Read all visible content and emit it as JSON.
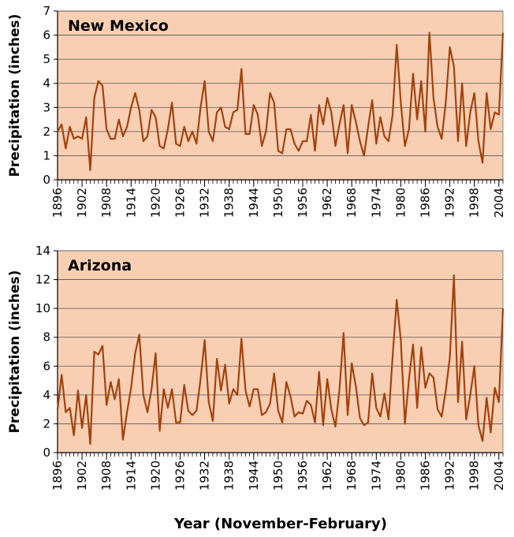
{
  "chart_data": [
    {
      "type": "line",
      "title": "New Mexico",
      "ylabel": "Precipitation (inches)",
      "x": [
        1896,
        1897,
        1898,
        1899,
        1900,
        1901,
        1902,
        1903,
        1904,
        1905,
        1906,
        1907,
        1908,
        1909,
        1910,
        1911,
        1912,
        1913,
        1914,
        1915,
        1916,
        1917,
        1918,
        1919,
        1920,
        1921,
        1922,
        1923,
        1924,
        1925,
        1926,
        1927,
        1928,
        1929,
        1930,
        1931,
        1932,
        1933,
        1934,
        1935,
        1936,
        1937,
        1938,
        1939,
        1940,
        1941,
        1942,
        1943,
        1944,
        1945,
        1946,
        1947,
        1948,
        1949,
        1950,
        1951,
        1952,
        1953,
        1954,
        1955,
        1956,
        1957,
        1958,
        1959,
        1960,
        1961,
        1962,
        1963,
        1964,
        1965,
        1966,
        1967,
        1968,
        1969,
        1970,
        1971,
        1972,
        1973,
        1974,
        1975,
        1976,
        1977,
        1978,
        1979,
        1980,
        1981,
        1982,
        1983,
        1984,
        1985,
        1986,
        1987,
        1988,
        1989,
        1990,
        1991,
        1992,
        1993,
        1994,
        1995,
        1996,
        1997,
        1998,
        1999,
        2000,
        2001,
        2002,
        2003,
        2004,
        2005
      ],
      "series": [
        {
          "name": "New Mexico",
          "color": "#a2420c",
          "values": [
            2.0,
            2.3,
            1.3,
            2.2,
            1.7,
            1.8,
            1.7,
            2.6,
            0.4,
            3.4,
            4.1,
            3.9,
            2.1,
            1.7,
            1.7,
            2.5,
            1.8,
            2.2,
            3.0,
            3.6,
            2.9,
            1.6,
            1.8,
            2.9,
            2.6,
            1.4,
            1.3,
            2.1,
            3.2,
            1.5,
            1.4,
            2.2,
            1.6,
            2.0,
            1.5,
            3.0,
            4.1,
            2.0,
            1.6,
            2.8,
            3.0,
            2.2,
            2.1,
            2.8,
            2.9,
            4.6,
            1.9,
            1.9,
            3.1,
            2.7,
            1.4,
            2.0,
            3.6,
            3.2,
            1.2,
            1.1,
            2.1,
            2.1,
            1.5,
            1.2,
            1.6,
            1.6,
            2.7,
            1.2,
            3.1,
            2.3,
            3.4,
            2.8,
            1.4,
            2.3,
            3.1,
            1.1,
            3.1,
            2.4,
            1.6,
            1.0,
            2.2,
            3.3,
            1.5,
            2.6,
            1.8,
            1.6,
            2.7,
            5.6,
            3.2,
            1.4,
            2.1,
            4.4,
            2.5,
            4.1,
            2.0,
            6.1,
            3.4,
            2.2,
            1.7,
            3.2,
            5.5,
            4.7,
            1.6,
            4.0,
            1.4,
            2.8,
            3.6,
            1.6,
            0.7,
            3.6,
            2.1,
            2.8,
            2.7,
            6.1
          ]
        }
      ],
      "xlim": [
        1896,
        2005
      ],
      "xticks": [
        1896,
        1902,
        1908,
        1914,
        1920,
        1926,
        1932,
        1938,
        1944,
        1950,
        1956,
        1962,
        1968,
        1974,
        1980,
        1986,
        1992,
        1998,
        2004
      ],
      "ylim": [
        0,
        7
      ],
      "yticks": [
        0,
        1,
        2,
        3,
        4,
        5,
        6,
        7
      ],
      "grid": true,
      "background": "#f9cfb4"
    },
    {
      "type": "line",
      "title": "Arizona",
      "ylabel": "Precipitation (inches)",
      "xlabel": "Year (November-February)",
      "x": [
        1896,
        1897,
        1898,
        1899,
        1900,
        1901,
        1902,
        1903,
        1904,
        1905,
        1906,
        1907,
        1908,
        1909,
        1910,
        1911,
        1912,
        1913,
        1914,
        1915,
        1916,
        1917,
        1918,
        1919,
        1920,
        1921,
        1922,
        1923,
        1924,
        1925,
        1926,
        1927,
        1928,
        1929,
        1930,
        1931,
        1932,
        1933,
        1934,
        1935,
        1936,
        1937,
        1938,
        1939,
        1940,
        1941,
        1942,
        1943,
        1944,
        1945,
        1946,
        1947,
        1948,
        1949,
        1950,
        1951,
        1952,
        1953,
        1954,
        1955,
        1956,
        1957,
        1958,
        1959,
        1960,
        1961,
        1962,
        1963,
        1964,
        1965,
        1966,
        1967,
        1968,
        1969,
        1970,
        1971,
        1972,
        1973,
        1974,
        1975,
        1976,
        1977,
        1978,
        1979,
        1980,
        1981,
        1982,
        1983,
        1984,
        1985,
        1986,
        1987,
        1988,
        1989,
        1990,
        1991,
        1992,
        1993,
        1994,
        1995,
        1996,
        1997,
        1998,
        1999,
        2000,
        2001,
        2002,
        2003,
        2004,
        2005
      ],
      "series": [
        {
          "name": "Arizona",
          "color": "#a2420c",
          "values": [
            3.0,
            5.4,
            2.8,
            3.1,
            1.2,
            4.3,
            1.7,
            4.0,
            0.6,
            7.0,
            6.8,
            7.4,
            3.3,
            4.9,
            3.7,
            5.1,
            0.9,
            2.8,
            4.5,
            6.9,
            8.2,
            4.0,
            2.8,
            4.4,
            6.9,
            1.5,
            4.4,
            3.1,
            4.4,
            2.1,
            2.1,
            4.7,
            2.9,
            2.6,
            2.9,
            5.1,
            7.8,
            3.5,
            2.2,
            6.5,
            4.3,
            6.1,
            3.4,
            4.4,
            4.0,
            7.9,
            4.3,
            3.2,
            4.4,
            4.4,
            2.6,
            2.8,
            3.4,
            5.5,
            2.9,
            2.1,
            4.9,
            3.9,
            2.5,
            2.8,
            2.7,
            3.6,
            3.3,
            2.1,
            5.6,
            1.9,
            5.1,
            3.0,
            1.8,
            4.4,
            8.3,
            2.6,
            6.2,
            4.6,
            2.4,
            1.9,
            2.1,
            5.5,
            3.1,
            2.5,
            4.1,
            2.3,
            6.7,
            10.6,
            7.8,
            2.0,
            5.1,
            7.5,
            3.1,
            7.3,
            4.5,
            5.5,
            5.2,
            3.0,
            2.5,
            4.3,
            6.6,
            12.3,
            3.5,
            7.7,
            2.3,
            4.0,
            6.0,
            1.9,
            0.8,
            3.8,
            1.4,
            4.5,
            3.5,
            10.0
          ]
        }
      ],
      "xlim": [
        1896,
        2005
      ],
      "xticks": [
        1896,
        1902,
        1908,
        1914,
        1920,
        1926,
        1932,
        1938,
        1944,
        1950,
        1956,
        1962,
        1968,
        1974,
        1980,
        1986,
        1992,
        1998,
        2004
      ],
      "ylim": [
        0,
        14
      ],
      "yticks": [
        0,
        2,
        4,
        6,
        8,
        10,
        12,
        14
      ],
      "grid": true,
      "background": "#f9cfb4"
    }
  ]
}
